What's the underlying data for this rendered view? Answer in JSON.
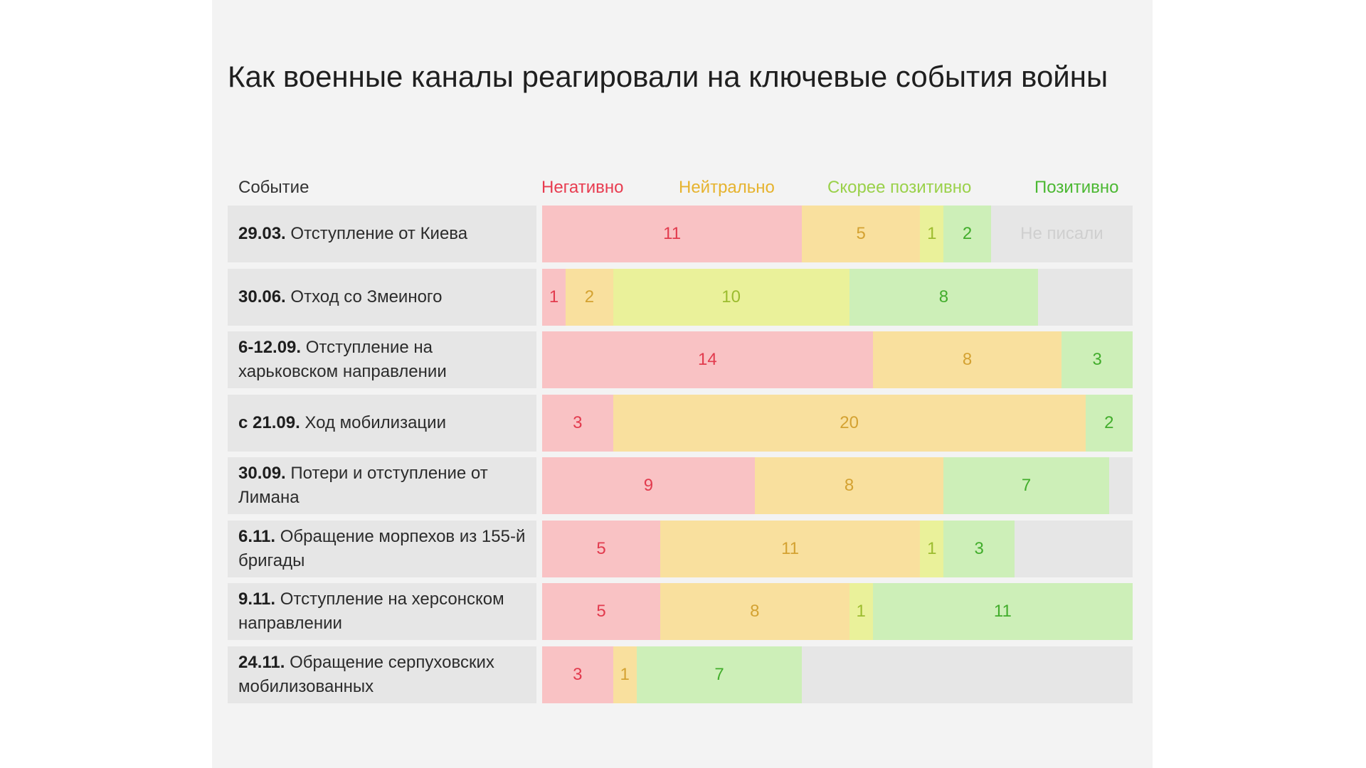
{
  "title": "Как военные каналы реагировали на ключевые события войны",
  "header": {
    "event": "Событие",
    "negative": "Негативно",
    "neutral": "Нейтрально",
    "somewhat_positive": "Скорее позитивно",
    "positive": "Позитивно"
  },
  "no_posts_label": "Не писали",
  "colors": {
    "negative_bg": "#f9c2c4",
    "neutral_bg": "#f9e09e",
    "somewhat_positive_bg": "#eaf19a",
    "positive_bg": "#cdefb8",
    "empty_bg": "#e6e6e6"
  },
  "chart_data": {
    "type": "bar",
    "stacked": true,
    "orientation": "horizontal",
    "title": "Как военные каналы реагировали на ключевые события войны",
    "total_channels": 25,
    "categories": [
      {
        "date": "29.03.",
        "label": "Отступление от Киева"
      },
      {
        "date": "30.06.",
        "label": "Отход со Змеиного"
      },
      {
        "date": "6-12.09.",
        "label": "Отступление на харьковском направлении"
      },
      {
        "date": "с 21.09.",
        "label": "Ход мобилизации"
      },
      {
        "date": "30.09.",
        "label": "Потери и отступление от Лимана"
      },
      {
        "date": "6.11.",
        "label": "Обращение морпехов из 155-й бригады"
      },
      {
        "date": "9.11.",
        "label": "Отступление на херсонском направлении"
      },
      {
        "date": "24.11.",
        "label": "Обращение серпуховских мобилизованных"
      }
    ],
    "series": [
      {
        "name": "Негативно",
        "key": "neg",
        "values": [
          11,
          1,
          14,
          3,
          9,
          5,
          5,
          3
        ]
      },
      {
        "name": "Нейтрально",
        "key": "neu",
        "values": [
          5,
          2,
          8,
          20,
          8,
          11,
          8,
          1
        ]
      },
      {
        "name": "Скорее позитивно",
        "key": "spos",
        "values": [
          1,
          10,
          0,
          0,
          0,
          1,
          1,
          0
        ]
      },
      {
        "name": "Позитивно",
        "key": "pos",
        "values": [
          2,
          8,
          3,
          2,
          7,
          3,
          11,
          7
        ]
      }
    ],
    "remainder_label_rows": [
      0
    ]
  }
}
